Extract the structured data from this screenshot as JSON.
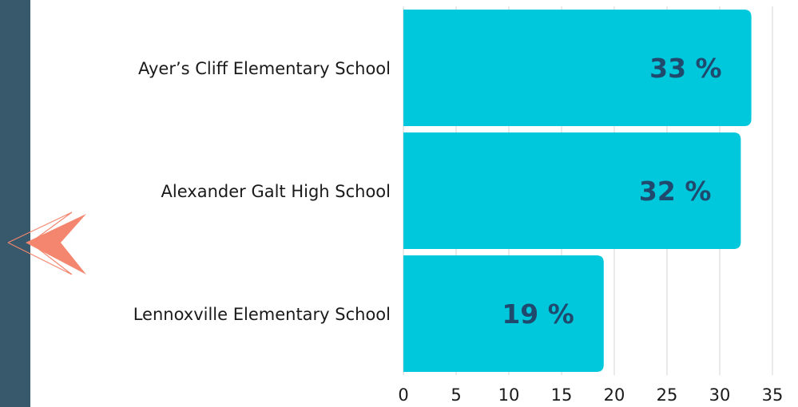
{
  "theme": {
    "sidebar_color": "#37596b",
    "bar_color": "#00c8dc",
    "value_label_color": "#1f4a6e",
    "grid_color": "#d6d6d6",
    "arrow_fill": "#f4866f",
    "arrow_outline": "#f4866f"
  },
  "nav": {
    "back_icon": "chevron-left-arrow-icon"
  },
  "chart_data": {
    "type": "bar",
    "orientation": "horizontal",
    "categories": [
      "Ayer’s Cliff Elementary School",
      "Alexander Galt High School",
      "Lennoxville Elementary School"
    ],
    "values": [
      33,
      32,
      19
    ],
    "value_labels": [
      "33 %",
      "32 %",
      "19 %"
    ],
    "xlim": [
      0,
      35
    ],
    "xticks": [
      0,
      5,
      10,
      15,
      20,
      25,
      30,
      35
    ],
    "grid": true,
    "legend": "none"
  }
}
